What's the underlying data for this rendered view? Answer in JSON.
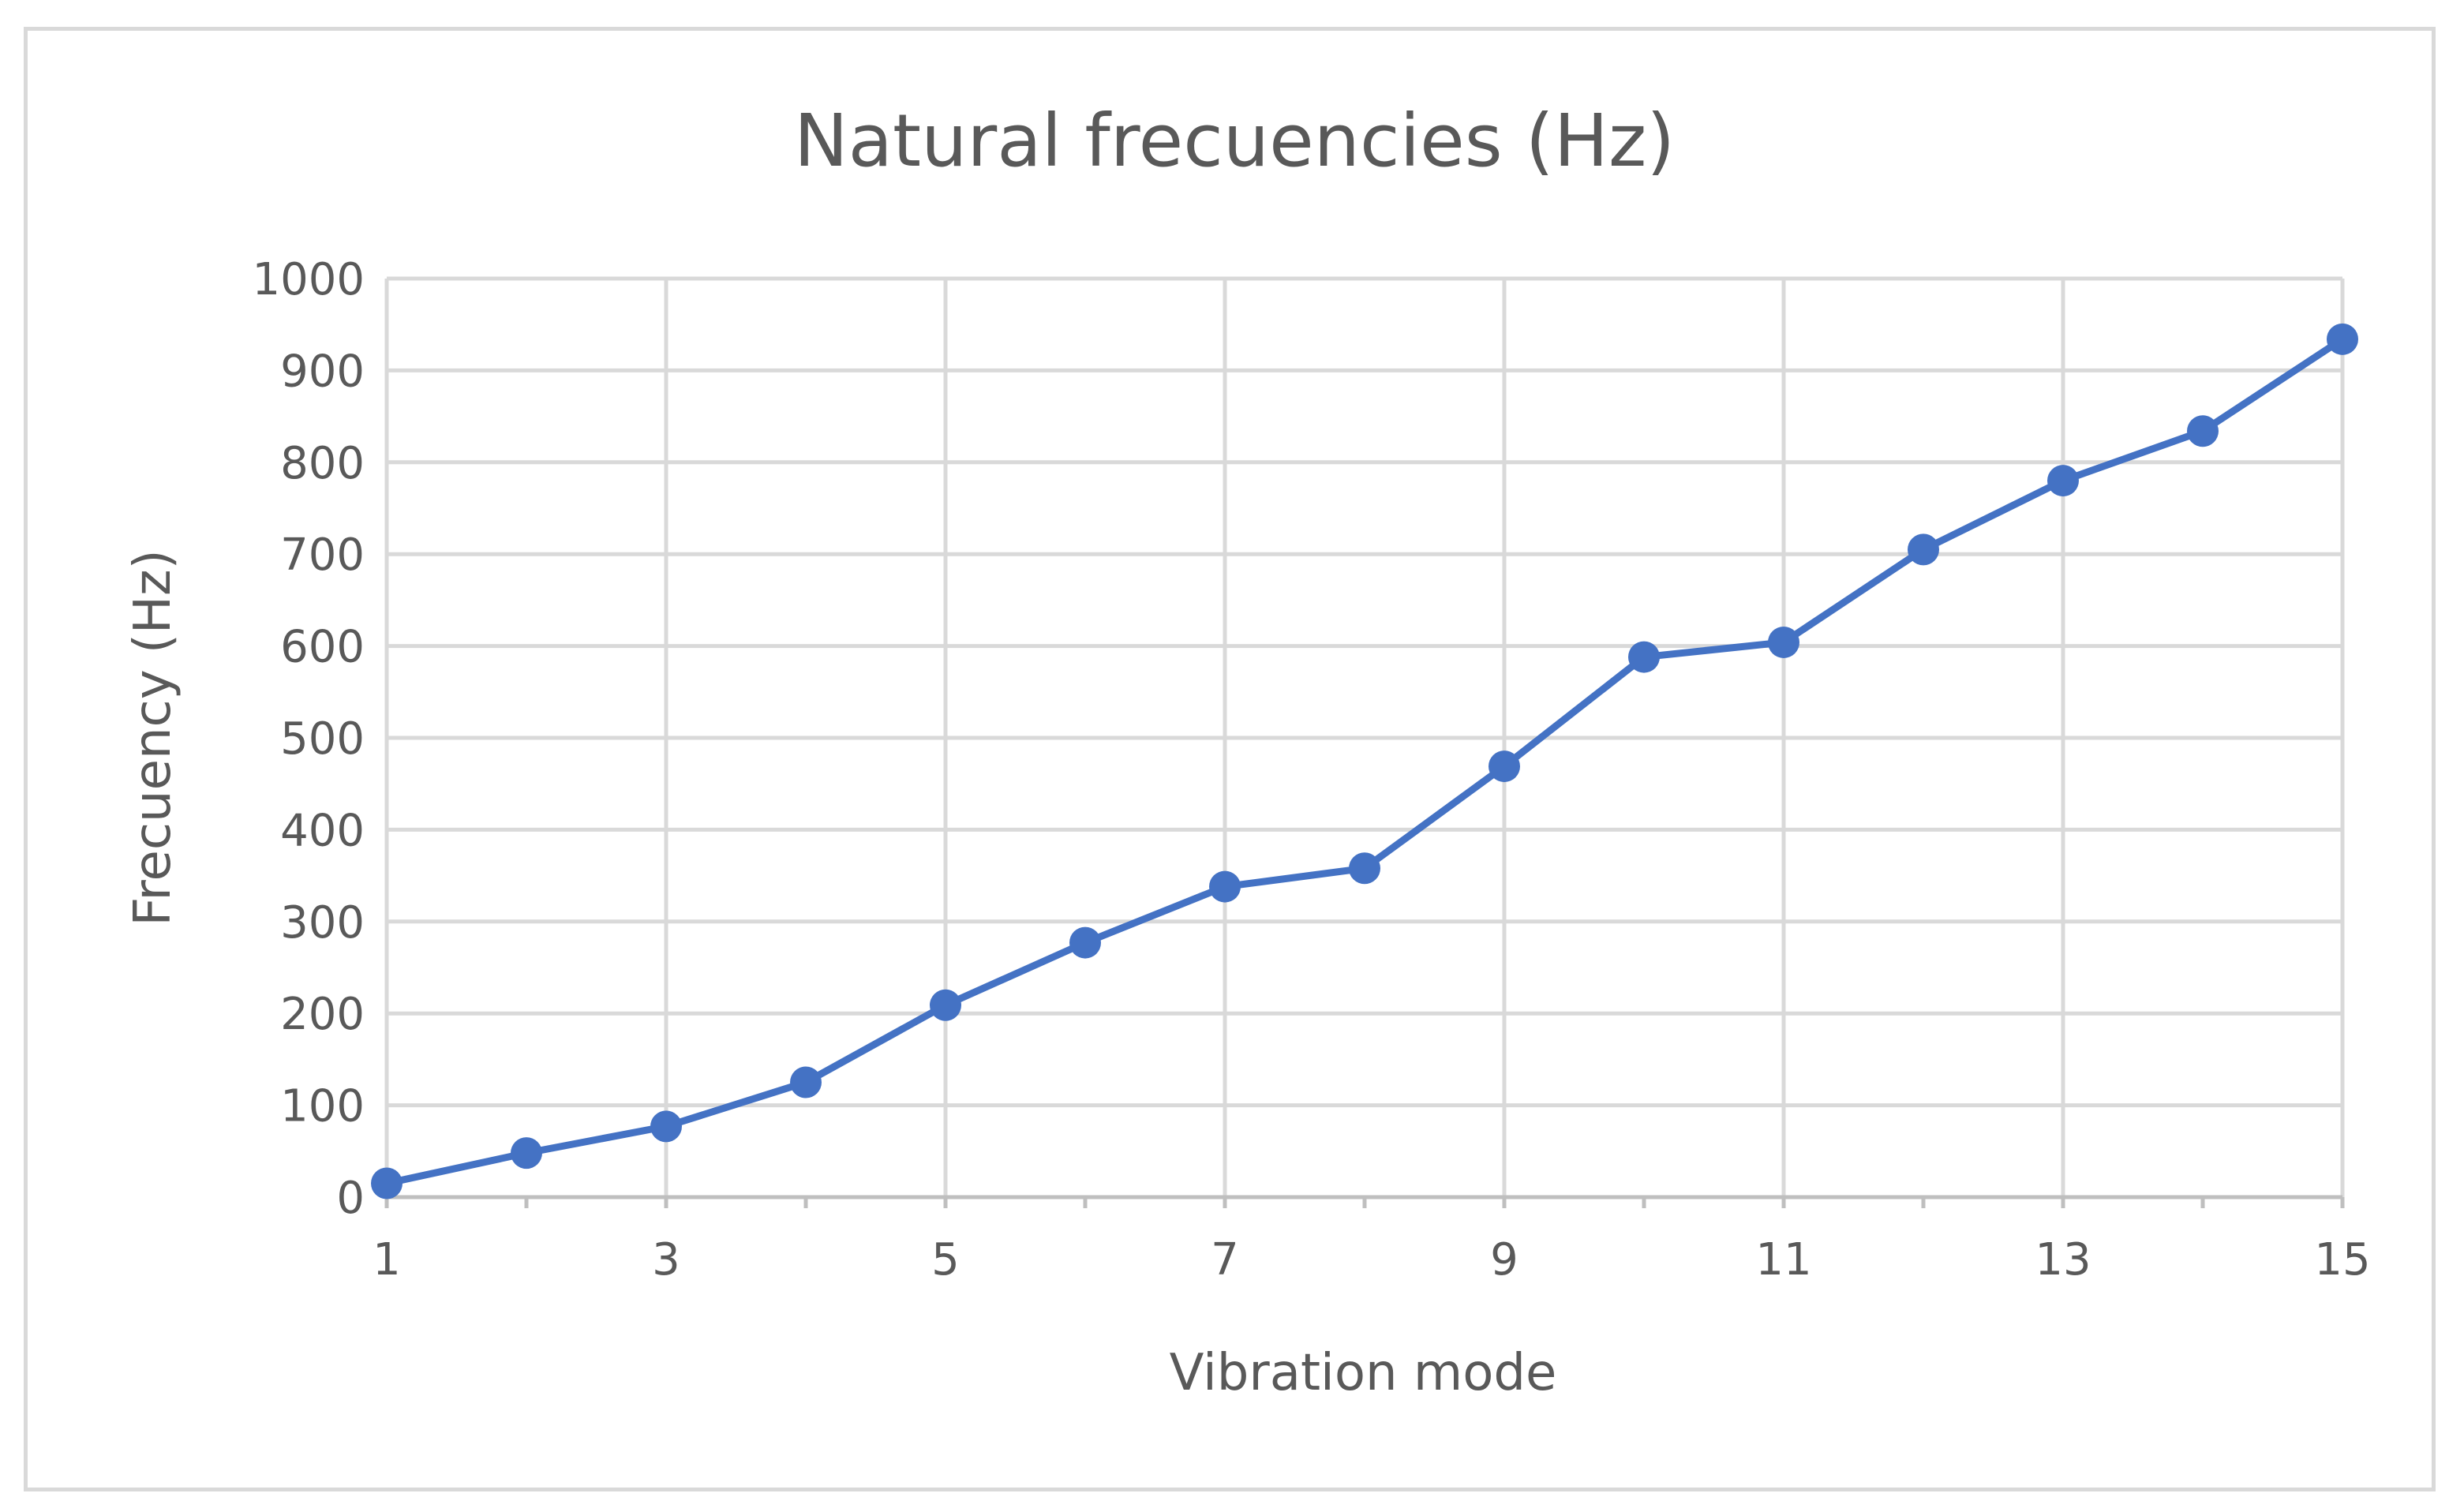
{
  "chart_data": {
    "type": "line",
    "title": "Natural frecuencies (Hz)",
    "xlabel": "Vibration mode",
    "ylabel": "Frecuency (Hz)",
    "xlim": [
      1,
      15
    ],
    "ylim": [
      0,
      1000
    ],
    "x_ticks": [
      1,
      3,
      5,
      7,
      9,
      11,
      13,
      15
    ],
    "y_ticks": [
      0,
      100,
      200,
      300,
      400,
      500,
      600,
      700,
      800,
      900,
      1000
    ],
    "x_gridlines": [
      1,
      3,
      5,
      7,
      9,
      11,
      13,
      15
    ],
    "grid": true,
    "legend": "none",
    "series": [
      {
        "name": "Natural frecuencies",
        "color": "#4472c4",
        "x": [
          1,
          2,
          3,
          4,
          5,
          6,
          7,
          8,
          9,
          10,
          11,
          12,
          13,
          14,
          15
        ],
        "values": [
          15,
          48,
          77,
          125,
          209,
          277,
          338,
          358,
          469,
          588,
          604,
          705,
          780,
          834,
          934
        ]
      }
    ]
  }
}
